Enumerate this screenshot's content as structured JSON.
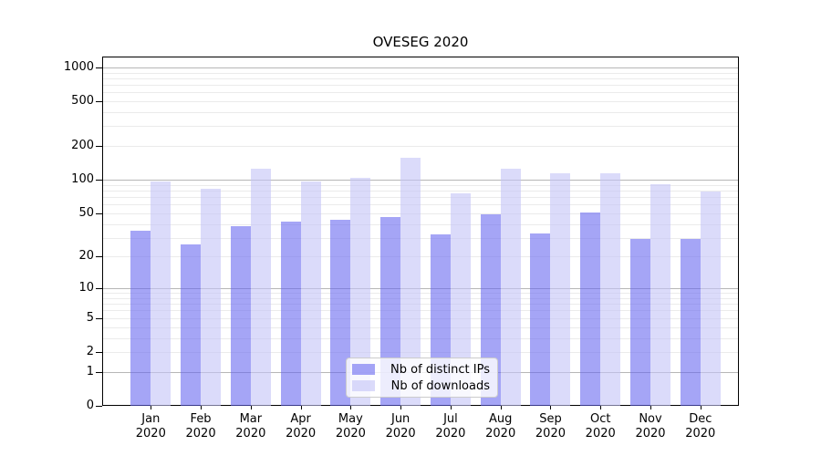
{
  "chart_data": {
    "type": "bar",
    "title": "OVESEG 2020",
    "categories": [
      "Jan",
      "Feb",
      "Mar",
      "Apr",
      "May",
      "Jun",
      "Jul",
      "Aug",
      "Sep",
      "Oct",
      "Nov",
      "Dec"
    ],
    "category_year_label": "2020",
    "series": [
      {
        "name": "Nb of distinct IPs",
        "color": "rgba(100,100,240,0.58)",
        "color_flat": "#a8a8f6",
        "values": [
          35,
          26,
          38,
          42,
          44,
          46,
          32,
          49,
          33,
          51,
          29,
          29
        ]
      },
      {
        "name": "Nb of downloads",
        "color": "rgba(195,195,247,0.6)",
        "color_flat": "#dbdbfa",
        "values": [
          96,
          83,
          125,
          97,
          105,
          158,
          76,
          125,
          115,
          115,
          91,
          78
        ]
      }
    ],
    "y_axis": {
      "scale": "log1p",
      "tick_values": [
        0,
        1,
        2,
        5,
        10,
        20,
        50,
        100,
        200,
        500,
        1000
      ],
      "range": [
        0,
        1000
      ],
      "major_grid_values": [
        1,
        10,
        100,
        1000
      ],
      "minor_grid_values": [
        2,
        3,
        4,
        5,
        6,
        7,
        8,
        9,
        20,
        30,
        40,
        50,
        60,
        70,
        80,
        90,
        200,
        300,
        400,
        500,
        600,
        700,
        800,
        900
      ],
      "major_grid_color": "#b6b6b6",
      "minor_grid_color": "#ebebeb"
    },
    "legend": {
      "position": "lower center"
    }
  }
}
